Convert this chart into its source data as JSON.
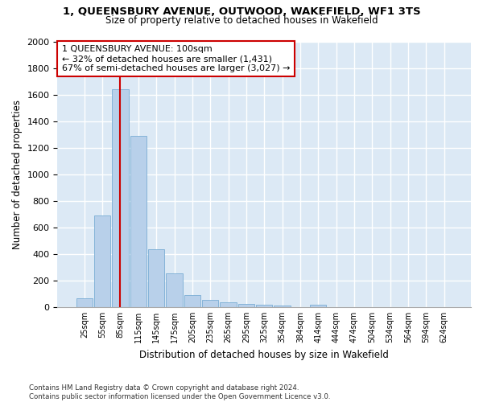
{
  "title": "1, QUEENSBURY AVENUE, OUTWOOD, WAKEFIELD, WF1 3TS",
  "subtitle": "Size of property relative to detached houses in Wakefield",
  "xlabel": "Distribution of detached houses by size in Wakefield",
  "ylabel": "Number of detached properties",
  "bar_color": "#b8d0ea",
  "bar_edge_color": "#7aadd4",
  "background_color": "#dce9f5",
  "grid_color": "#ffffff",
  "categories": [
    "25sqm",
    "55sqm",
    "85sqm",
    "115sqm",
    "145sqm",
    "175sqm",
    "205sqm",
    "235sqm",
    "265sqm",
    "295sqm",
    "325sqm",
    "354sqm",
    "384sqm",
    "414sqm",
    "444sqm",
    "474sqm",
    "504sqm",
    "534sqm",
    "564sqm",
    "594sqm",
    "624sqm"
  ],
  "values": [
    65,
    690,
    1640,
    1290,
    435,
    255,
    90,
    55,
    35,
    25,
    15,
    10,
    0,
    15,
    0,
    0,
    0,
    0,
    0,
    0,
    0
  ],
  "property_bin_index": 2,
  "annotation_text": "1 QUEENSBURY AVENUE: 100sqm\n← 32% of detached houses are smaller (1,431)\n67% of semi-detached houses are larger (3,027) →",
  "vline_color": "#cc0000",
  "annotation_box_color": "#cc0000",
  "footer_text": "Contains HM Land Registry data © Crown copyright and database right 2024.\nContains public sector information licensed under the Open Government Licence v3.0.",
  "ylim": [
    0,
    2000
  ],
  "yticks": [
    0,
    200,
    400,
    600,
    800,
    1000,
    1200,
    1400,
    1600,
    1800,
    2000
  ]
}
